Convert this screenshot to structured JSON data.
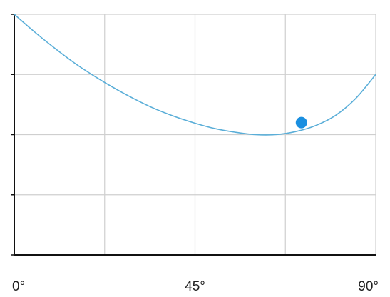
{
  "colors": {
    "grid": "#cfcfcf",
    "axis": "#111111",
    "curve": "#5aaed8",
    "marker": "#1a8fe0",
    "text": "#222222"
  },
  "chart_data": {
    "type": "line",
    "title": "",
    "xlabel": "",
    "ylabel": "",
    "xlim": [
      0,
      90
    ],
    "ylim": [
      0,
      4
    ],
    "x_ticks": [
      0,
      22.5,
      45,
      67.5,
      90
    ],
    "x_tick_labels": [
      "0°",
      "",
      "45°",
      "",
      "90°"
    ],
    "y_ticks": [
      0,
      1,
      2,
      3,
      4
    ],
    "y_tick_labels": [
      "",
      "",
      "",
      "",
      ""
    ],
    "grid": true,
    "legend": "none",
    "series": [
      {
        "x": [
          0,
          5,
          10,
          15,
          20,
          25,
          30,
          35,
          40,
          45,
          50,
          55,
          60,
          65,
          70,
          75,
          80,
          85,
          90
        ],
        "y": [
          4.0,
          3.71,
          3.44,
          3.19,
          2.97,
          2.77,
          2.59,
          2.43,
          2.3,
          2.19,
          2.1,
          2.04,
          2.0,
          2.0,
          2.05,
          2.15,
          2.32,
          2.6,
          3.0
        ]
      }
    ],
    "highlight_point": {
      "x": 71.5,
      "y": 2.2
    }
  }
}
